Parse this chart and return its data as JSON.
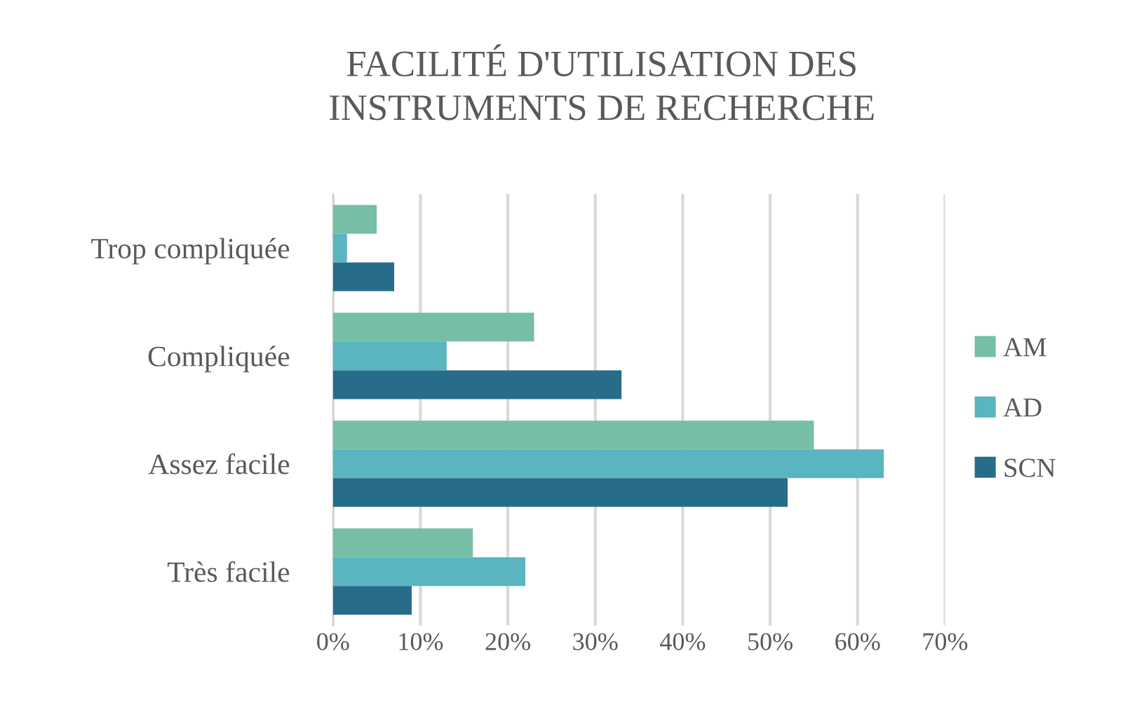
{
  "chart_data": {
    "type": "bar",
    "orientation": "horizontal",
    "title": "FACILITÉ D'UTILISATION DES\nINSTRUMENTS DE RECHERCHE",
    "categories": [
      "Trop compliquée",
      "Compliquée",
      "Assez facile",
      "Très facile"
    ],
    "series": [
      {
        "name": "AM",
        "color": "#76bea5",
        "values": [
          5,
          23,
          55,
          16
        ]
      },
      {
        "name": "AD",
        "color": "#59b5bf",
        "values": [
          1.6,
          13,
          63,
          22
        ]
      },
      {
        "name": "SCN",
        "color": "#276d89",
        "values": [
          7,
          33,
          52,
          9
        ]
      }
    ],
    "xlim": [
      0,
      70
    ],
    "xticks": [
      {
        "value": 0,
        "label": "0%"
      },
      {
        "value": 10,
        "label": "10%"
      },
      {
        "value": 20,
        "label": "20%"
      },
      {
        "value": 30,
        "label": "30%"
      },
      {
        "value": 40,
        "label": "40%"
      },
      {
        "value": 50,
        "label": "50%"
      },
      {
        "value": 60,
        "label": "60%"
      },
      {
        "value": 70,
        "label": "70%"
      }
    ],
    "grid": "x",
    "legend": "right"
  }
}
